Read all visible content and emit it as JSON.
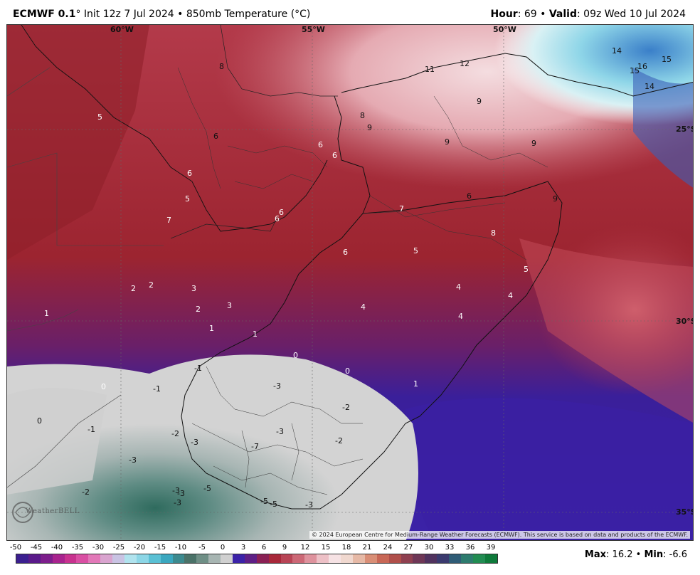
{
  "header": {
    "model": "ECMWF 0.1",
    "degree_symbol": "°",
    "init": "Init 12z 7 Jul 2024",
    "bullet": "•",
    "field": "850mb Temperature (°C)",
    "hour_label": "Hour",
    "hour_value": ": 69",
    "valid_label": "Valid",
    "valid_value": ": 09z Wed 10 Jul 2024"
  },
  "map": {
    "longitude_labels": [
      "60°W",
      "55°W",
      "50°W"
    ],
    "latitude_labels": [
      "25°S",
      "30°S",
      "35°S"
    ],
    "contour_labels": [
      {
        "t": "8"
      },
      {
        "t": "11"
      },
      {
        "t": "12"
      },
      {
        "t": "14"
      },
      {
        "t": "15"
      },
      {
        "t": "16"
      },
      {
        "t": "15"
      },
      {
        "t": "14"
      },
      {
        "t": "5"
      },
      {
        "t": "8"
      },
      {
        "t": "9"
      },
      {
        "t": "9"
      },
      {
        "t": "9"
      },
      {
        "t": "9"
      },
      {
        "t": "6"
      },
      {
        "t": "6"
      },
      {
        "t": "6"
      },
      {
        "t": "6"
      },
      {
        "t": "6"
      },
      {
        "t": "5"
      },
      {
        "t": "6"
      },
      {
        "t": "6"
      },
      {
        "t": "7"
      },
      {
        "t": "9"
      },
      {
        "t": "8"
      },
      {
        "t": "7"
      },
      {
        "t": "5"
      },
      {
        "t": "6"
      },
      {
        "t": "5"
      },
      {
        "t": "4"
      },
      {
        "t": "4"
      },
      {
        "t": "4"
      },
      {
        "t": "2"
      },
      {
        "t": "2"
      },
      {
        "t": "3"
      },
      {
        "t": "2"
      },
      {
        "t": "3"
      },
      {
        "t": "4"
      },
      {
        "t": "1"
      },
      {
        "t": "1"
      },
      {
        "t": "1"
      },
      {
        "t": "0"
      },
      {
        "t": "0"
      },
      {
        "t": "1"
      },
      {
        "t": "0"
      },
      {
        "t": "-1"
      },
      {
        "t": "-1"
      },
      {
        "t": "-3"
      },
      {
        "t": "-2"
      },
      {
        "t": "0"
      },
      {
        "t": "-1"
      },
      {
        "t": "-3"
      },
      {
        "t": "-2"
      },
      {
        "t": "-3"
      },
      {
        "t": "-7"
      },
      {
        "t": "-2"
      },
      {
        "t": "-3"
      },
      {
        "t": "-2"
      },
      {
        "t": "-3"
      },
      {
        "t": "-5"
      },
      {
        "t": "-3"
      },
      {
        "t": "-3"
      },
      {
        "t": "-5"
      },
      {
        "t": "-5"
      },
      {
        "t": "-3"
      }
    ],
    "copyright": "© 2024 European Centre for Medium-Range Weather Forecasts (ECMWF). This service is based on data and products of the ECMWF.",
    "logo_text": "WeatherBELL"
  },
  "colorbar": {
    "ticks": [
      "-50",
      "-45",
      "-40",
      "-35",
      "-30",
      "-25",
      "-20",
      "-15",
      "-10",
      "-5",
      "0",
      "3",
      "6",
      "9",
      "12",
      "15",
      "18",
      "21",
      "24",
      "27",
      "30",
      "33",
      "36",
      "39"
    ]
  },
  "stats": {
    "max_label": "Max",
    "max_value": ": 16.2",
    "bullet": "•",
    "min_label": "Min",
    "min_value": ": -6.6"
  }
}
